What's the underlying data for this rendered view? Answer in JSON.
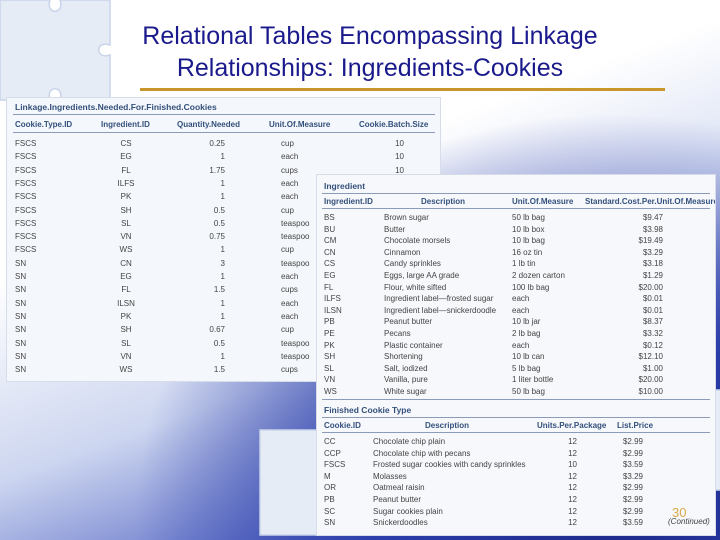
{
  "title_line1": "Relational Tables Encompassing Linkage",
  "title_line2": "Relationships: Ingredients-Cookies",
  "page_number": "30",
  "continued": "(Continued)",
  "linkage": {
    "caption": "Linkage.Ingredients.Needed.For.Finished.Cookies",
    "headers": [
      "Cookie.Type.ID",
      "Ingredient.ID",
      "Quantity.Needed",
      "Unit.Of.Measure",
      "Cookie.Batch.Size"
    ],
    "rows": [
      [
        "FSCS",
        "CS",
        "0.25",
        "cup",
        "10"
      ],
      [
        "FSCS",
        "EG",
        "1",
        "each",
        "10"
      ],
      [
        "FSCS",
        "FL",
        "1.75",
        "cups",
        "10"
      ],
      [
        "FSCS",
        "ILFS",
        "1",
        "each",
        ""
      ],
      [
        "FSCS",
        "PK",
        "1",
        "each",
        ""
      ],
      [
        "FSCS",
        "SH",
        "0.5",
        "cup",
        ""
      ],
      [
        "FSCS",
        "SL",
        "0.5",
        "teaspoo",
        ""
      ],
      [
        "FSCS",
        "VN",
        "0.75",
        "teaspoo",
        ""
      ],
      [
        "FSCS",
        "WS",
        "1",
        "cup",
        ""
      ],
      [
        "SN",
        "CN",
        "3",
        "teaspoo",
        ""
      ],
      [
        "SN",
        "EG",
        "1",
        "each",
        ""
      ],
      [
        "SN",
        "FL",
        "1.5",
        "cups",
        ""
      ],
      [
        "SN",
        "ILSN",
        "1",
        "each",
        ""
      ],
      [
        "SN",
        "PK",
        "1",
        "each",
        ""
      ],
      [
        "SN",
        "SH",
        "0.67",
        "cup",
        ""
      ],
      [
        "SN",
        "SL",
        "0.5",
        "teaspoo",
        ""
      ],
      [
        "SN",
        "VN",
        "1",
        "teaspoo",
        ""
      ],
      [
        "SN",
        "WS",
        "1.5",
        "cups",
        ""
      ]
    ]
  },
  "ingredient": {
    "caption": "Ingredient",
    "headers": [
      "Ingredient.ID",
      "Description",
      "Unit.Of.Measure",
      "Standard.Cost.Per.Unit.Of.Measure"
    ],
    "rows": [
      [
        "BS",
        "Brown sugar",
        "50 lb bag",
        "$9.47"
      ],
      [
        "BU",
        "Butter",
        "10 lb box",
        "$3.98"
      ],
      [
        "CM",
        "Chocolate morsels",
        "10 lb bag",
        "$19.49"
      ],
      [
        "CN",
        "Cinnamon",
        "16 oz tin",
        "$3.29"
      ],
      [
        "CS",
        "Candy sprinkles",
        "1 lb tin",
        "$3.18"
      ],
      [
        "EG",
        "Eggs, large AA grade",
        "2 dozen carton",
        "$1.29"
      ],
      [
        "FL",
        "Flour, white sifted",
        "100 lb bag",
        "$20.00"
      ],
      [
        "ILFS",
        "Ingredient label—frosted sugar",
        "each",
        "$0.01"
      ],
      [
        "ILSN",
        "Ingredient label—snickerdoodle",
        "each",
        "$0.01"
      ],
      [
        "PB",
        "Peanut butter",
        "10 lb jar",
        "$8.37"
      ],
      [
        "PE",
        "Pecans",
        "2 lb bag",
        "$3.32"
      ],
      [
        "PK",
        "Plastic container",
        "each",
        "$0.12"
      ],
      [
        "SH",
        "Shortening",
        "10 lb can",
        "$12.10"
      ],
      [
        "SL",
        "Salt, iodized",
        "5 lb bag",
        "$1.00"
      ],
      [
        "VN",
        "Vanilla, pure",
        "1 liter bottle",
        "$20.00"
      ],
      [
        "WS",
        "White sugar",
        "50 lb bag",
        "$10.00"
      ]
    ]
  },
  "finished": {
    "caption": "Finished Cookie Type",
    "headers": [
      "Cookie.ID",
      "Description",
      "Units.Per.Package",
      "List.Price"
    ],
    "rows": [
      [
        "CC",
        "Chocolate chip plain",
        "12",
        "$2.99"
      ],
      [
        "CCP",
        "Chocolate chip with pecans",
        "12",
        "$2.99"
      ],
      [
        "FSCS",
        "Frosted sugar cookies with candy sprinkles",
        "10",
        "$3.59"
      ],
      [
        "M",
        "Molasses",
        "12",
        "$3.29"
      ],
      [
        "OR",
        "Oatmeal raisin",
        "12",
        "$2.99"
      ],
      [
        "PB",
        "Peanut butter",
        "12",
        "$2.99"
      ],
      [
        "SC",
        "Sugar cookies plain",
        "12",
        "$2.99"
      ],
      [
        "SN",
        "Snickerdoodles",
        "12",
        "$3.59"
      ]
    ]
  }
}
